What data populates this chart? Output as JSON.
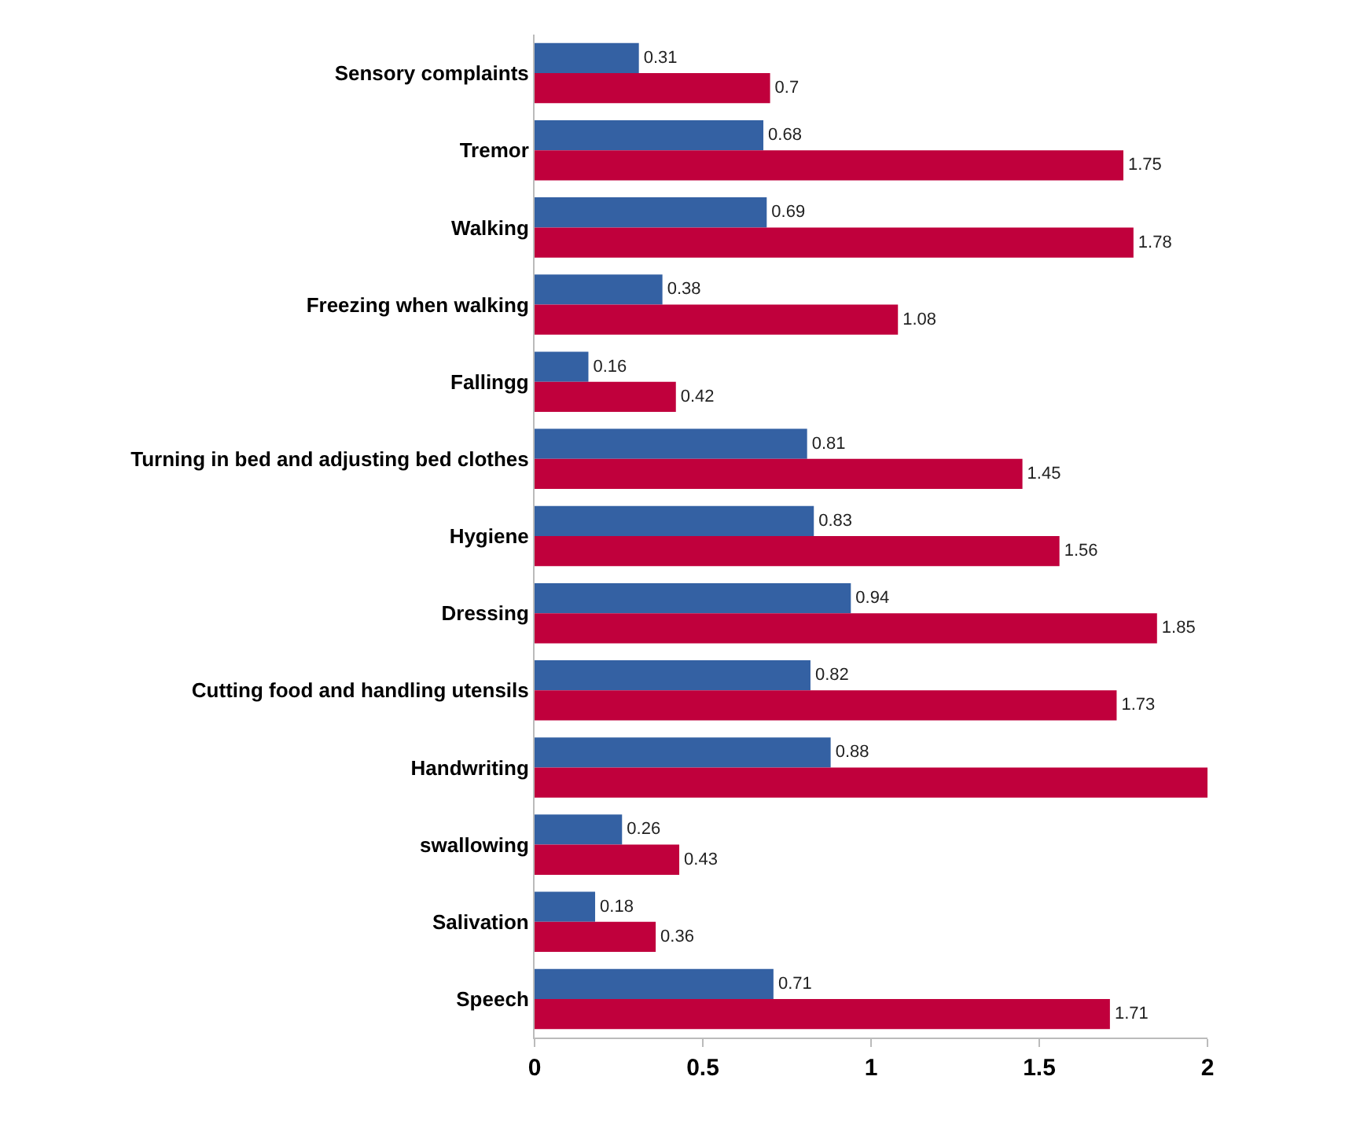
{
  "chart_data": {
    "type": "bar",
    "orientation": "horizontal",
    "categories": [
      "Sensory complaints",
      "Tremor",
      "Walking",
      "Freezing when walking",
      "Fallingg",
      "Turning in bed and adjusting bed clothes",
      "Hygiene",
      "Dressing",
      "Cutting food and handling utensils",
      "Handwriting",
      "swallowing",
      "Salivation",
      "Speech"
    ],
    "series": [
      {
        "color": "#3461a3",
        "values": [
          0.31,
          0.68,
          0.69,
          0.38,
          0.16,
          0.81,
          0.83,
          0.94,
          0.82,
          0.88,
          0.26,
          0.18,
          0.71
        ],
        "value_labels": [
          "0.31",
          "0.68",
          "0.69",
          "0.38",
          "0.16",
          "0.81",
          "0.83",
          "0.94",
          "0.82",
          "0.88",
          "0.26",
          "0.18",
          "0.71"
        ]
      },
      {
        "color": "#c0003c",
        "values": [
          0.7,
          1.75,
          1.78,
          1.08,
          0.42,
          1.45,
          1.56,
          1.85,
          1.73,
          2.0,
          0.43,
          0.36,
          1.71
        ],
        "value_labels": [
          "0.7",
          "1.75",
          "1.78",
          "1.08",
          "0.42",
          "1.45",
          "1.56",
          "1.85",
          "1.73",
          null,
          "0.43",
          "0.36",
          "1.71"
        ]
      }
    ],
    "xlim": [
      0,
      2
    ],
    "xticks": [
      0,
      0.5,
      1,
      1.5,
      2
    ],
    "legend": false
  }
}
